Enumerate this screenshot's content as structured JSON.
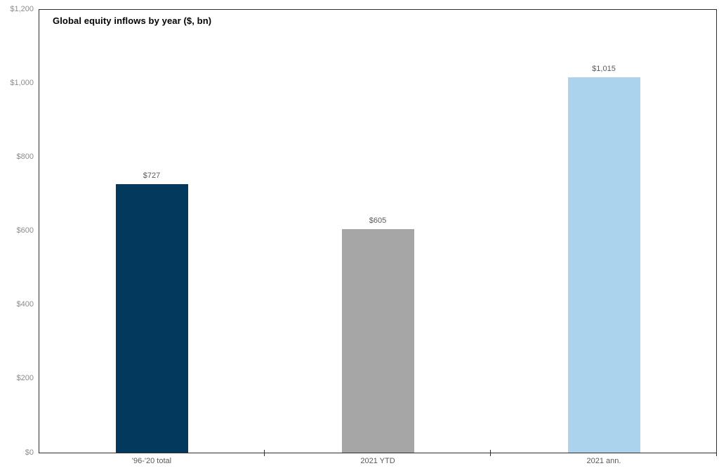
{
  "chart": {
    "title": "Global equity inflows by year ($, bn)"
  },
  "chart_data": {
    "type": "bar",
    "title": "Global equity inflows by year ($, bn)",
    "xlabel": "",
    "ylabel": "",
    "categories": [
      "'96-'20 total",
      "2021 YTD",
      "2021 ann."
    ],
    "values": [
      727,
      605,
      1015
    ],
    "data_labels": [
      "$727",
      "$605",
      "$1,015"
    ],
    "bar_colors": [
      "#04395e",
      "#a6a6a6",
      "#abd3ee"
    ],
    "ylim": [
      0,
      1200
    ],
    "ytick_interval": 200,
    "ytick_labels": [
      "$0",
      "$200",
      "$400",
      "$600",
      "$800",
      "$1,000",
      "$1,200"
    ],
    "grid": false,
    "legend": false,
    "plot_border": true,
    "tick_marks": "category-boundaries"
  },
  "colors": {
    "background": "#ffffff",
    "frame": "#2e2e2e",
    "title": "#000000",
    "axis_label": "#8c8c8c",
    "data_label": "#595959",
    "category_label": "#595959"
  }
}
